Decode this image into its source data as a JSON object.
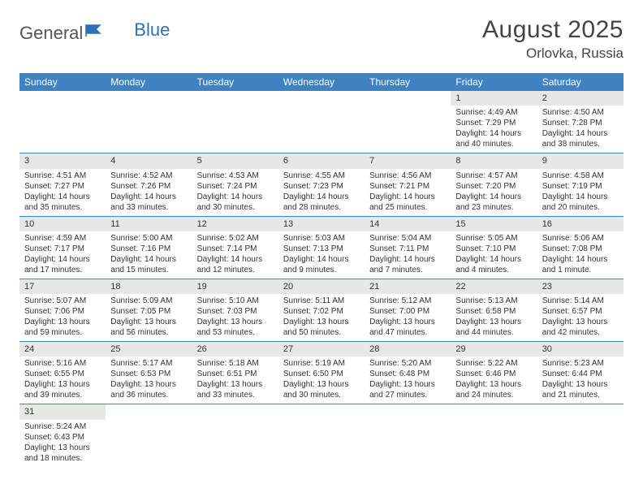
{
  "logo": {
    "text1": "General",
    "text2": "Blue"
  },
  "title": "August 2025",
  "location": "Orlovka, Russia",
  "colors": {
    "header_bg": "#3e82c4",
    "header_text": "#ffffff",
    "daynum_bg": "#e7e7e7",
    "row_border": "#3e82c4",
    "logo_accent": "#2f70b7"
  },
  "weekdays": [
    "Sunday",
    "Monday",
    "Tuesday",
    "Wednesday",
    "Thursday",
    "Friday",
    "Saturday"
  ],
  "weeks": [
    [
      {
        "empty": true
      },
      {
        "empty": true
      },
      {
        "empty": true
      },
      {
        "empty": true
      },
      {
        "empty": true
      },
      {
        "n": "1",
        "sr": "Sunrise: 4:49 AM",
        "ss": "Sunset: 7:29 PM",
        "dl1": "Daylight: 14 hours",
        "dl2": "and 40 minutes."
      },
      {
        "n": "2",
        "sr": "Sunrise: 4:50 AM",
        "ss": "Sunset: 7:28 PM",
        "dl1": "Daylight: 14 hours",
        "dl2": "and 38 minutes."
      }
    ],
    [
      {
        "n": "3",
        "sr": "Sunrise: 4:51 AM",
        "ss": "Sunset: 7:27 PM",
        "dl1": "Daylight: 14 hours",
        "dl2": "and 35 minutes."
      },
      {
        "n": "4",
        "sr": "Sunrise: 4:52 AM",
        "ss": "Sunset: 7:26 PM",
        "dl1": "Daylight: 14 hours",
        "dl2": "and 33 minutes."
      },
      {
        "n": "5",
        "sr": "Sunrise: 4:53 AM",
        "ss": "Sunset: 7:24 PM",
        "dl1": "Daylight: 14 hours",
        "dl2": "and 30 minutes."
      },
      {
        "n": "6",
        "sr": "Sunrise: 4:55 AM",
        "ss": "Sunset: 7:23 PM",
        "dl1": "Daylight: 14 hours",
        "dl2": "and 28 minutes."
      },
      {
        "n": "7",
        "sr": "Sunrise: 4:56 AM",
        "ss": "Sunset: 7:21 PM",
        "dl1": "Daylight: 14 hours",
        "dl2": "and 25 minutes."
      },
      {
        "n": "8",
        "sr": "Sunrise: 4:57 AM",
        "ss": "Sunset: 7:20 PM",
        "dl1": "Daylight: 14 hours",
        "dl2": "and 23 minutes."
      },
      {
        "n": "9",
        "sr": "Sunrise: 4:58 AM",
        "ss": "Sunset: 7:19 PM",
        "dl1": "Daylight: 14 hours",
        "dl2": "and 20 minutes."
      }
    ],
    [
      {
        "n": "10",
        "sr": "Sunrise: 4:59 AM",
        "ss": "Sunset: 7:17 PM",
        "dl1": "Daylight: 14 hours",
        "dl2": "and 17 minutes."
      },
      {
        "n": "11",
        "sr": "Sunrise: 5:00 AM",
        "ss": "Sunset: 7:16 PM",
        "dl1": "Daylight: 14 hours",
        "dl2": "and 15 minutes."
      },
      {
        "n": "12",
        "sr": "Sunrise: 5:02 AM",
        "ss": "Sunset: 7:14 PM",
        "dl1": "Daylight: 14 hours",
        "dl2": "and 12 minutes."
      },
      {
        "n": "13",
        "sr": "Sunrise: 5:03 AM",
        "ss": "Sunset: 7:13 PM",
        "dl1": "Daylight: 14 hours",
        "dl2": "and 9 minutes."
      },
      {
        "n": "14",
        "sr": "Sunrise: 5:04 AM",
        "ss": "Sunset: 7:11 PM",
        "dl1": "Daylight: 14 hours",
        "dl2": "and 7 minutes."
      },
      {
        "n": "15",
        "sr": "Sunrise: 5:05 AM",
        "ss": "Sunset: 7:10 PM",
        "dl1": "Daylight: 14 hours",
        "dl2": "and 4 minutes."
      },
      {
        "n": "16",
        "sr": "Sunrise: 5:06 AM",
        "ss": "Sunset: 7:08 PM",
        "dl1": "Daylight: 14 hours",
        "dl2": "and 1 minute."
      }
    ],
    [
      {
        "n": "17",
        "sr": "Sunrise: 5:07 AM",
        "ss": "Sunset: 7:06 PM",
        "dl1": "Daylight: 13 hours",
        "dl2": "and 59 minutes."
      },
      {
        "n": "18",
        "sr": "Sunrise: 5:09 AM",
        "ss": "Sunset: 7:05 PM",
        "dl1": "Daylight: 13 hours",
        "dl2": "and 56 minutes."
      },
      {
        "n": "19",
        "sr": "Sunrise: 5:10 AM",
        "ss": "Sunset: 7:03 PM",
        "dl1": "Daylight: 13 hours",
        "dl2": "and 53 minutes."
      },
      {
        "n": "20",
        "sr": "Sunrise: 5:11 AM",
        "ss": "Sunset: 7:02 PM",
        "dl1": "Daylight: 13 hours",
        "dl2": "and 50 minutes."
      },
      {
        "n": "21",
        "sr": "Sunrise: 5:12 AM",
        "ss": "Sunset: 7:00 PM",
        "dl1": "Daylight: 13 hours",
        "dl2": "and 47 minutes."
      },
      {
        "n": "22",
        "sr": "Sunrise: 5:13 AM",
        "ss": "Sunset: 6:58 PM",
        "dl1": "Daylight: 13 hours",
        "dl2": "and 44 minutes."
      },
      {
        "n": "23",
        "sr": "Sunrise: 5:14 AM",
        "ss": "Sunset: 6:57 PM",
        "dl1": "Daylight: 13 hours",
        "dl2": "and 42 minutes."
      }
    ],
    [
      {
        "n": "24",
        "sr": "Sunrise: 5:16 AM",
        "ss": "Sunset: 6:55 PM",
        "dl1": "Daylight: 13 hours",
        "dl2": "and 39 minutes."
      },
      {
        "n": "25",
        "sr": "Sunrise: 5:17 AM",
        "ss": "Sunset: 6:53 PM",
        "dl1": "Daylight: 13 hours",
        "dl2": "and 36 minutes."
      },
      {
        "n": "26",
        "sr": "Sunrise: 5:18 AM",
        "ss": "Sunset: 6:51 PM",
        "dl1": "Daylight: 13 hours",
        "dl2": "and 33 minutes."
      },
      {
        "n": "27",
        "sr": "Sunrise: 5:19 AM",
        "ss": "Sunset: 6:50 PM",
        "dl1": "Daylight: 13 hours",
        "dl2": "and 30 minutes."
      },
      {
        "n": "28",
        "sr": "Sunrise: 5:20 AM",
        "ss": "Sunset: 6:48 PM",
        "dl1": "Daylight: 13 hours",
        "dl2": "and 27 minutes."
      },
      {
        "n": "29",
        "sr": "Sunrise: 5:22 AM",
        "ss": "Sunset: 6:46 PM",
        "dl1": "Daylight: 13 hours",
        "dl2": "and 24 minutes."
      },
      {
        "n": "30",
        "sr": "Sunrise: 5:23 AM",
        "ss": "Sunset: 6:44 PM",
        "dl1": "Daylight: 13 hours",
        "dl2": "and 21 minutes."
      }
    ],
    [
      {
        "n": "31",
        "sr": "Sunrise: 5:24 AM",
        "ss": "Sunset: 6:43 PM",
        "dl1": "Daylight: 13 hours",
        "dl2": "and 18 minutes."
      },
      {
        "empty": true
      },
      {
        "empty": true
      },
      {
        "empty": true
      },
      {
        "empty": true
      },
      {
        "empty": true
      },
      {
        "empty": true
      }
    ]
  ]
}
